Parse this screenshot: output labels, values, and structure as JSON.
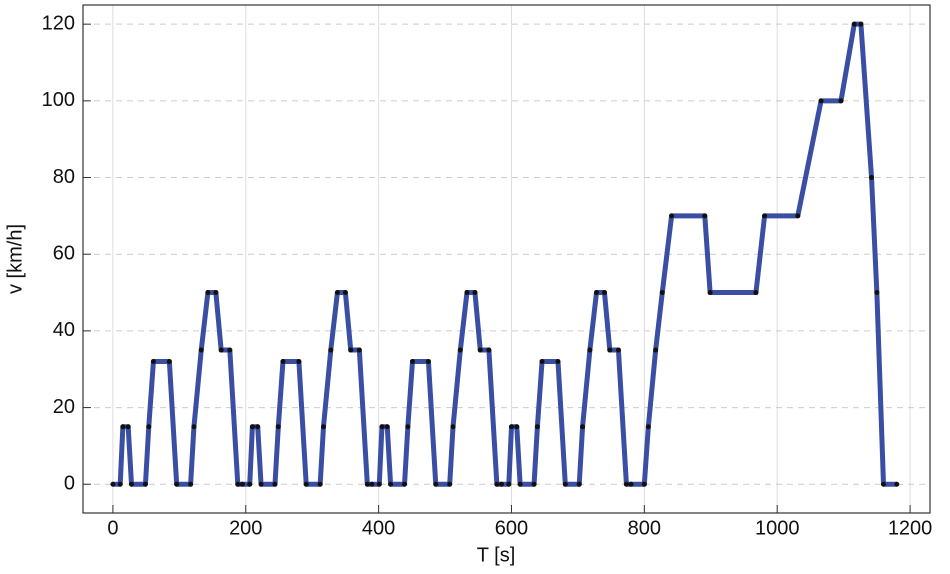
{
  "chart_data": {
    "type": "line",
    "xlabel": "T [s]",
    "ylabel": "v [km/h]",
    "x": [
      0,
      11,
      15,
      23,
      28,
      49,
      54,
      61,
      85,
      96,
      117,
      122,
      133,
      143,
      155,
      163,
      176,
      188,
      195,
      206,
      210,
      218,
      223,
      244,
      249,
      256,
      280,
      291,
      312,
      317,
      328,
      338,
      350,
      358,
      371,
      383,
      390,
      401,
      405,
      413,
      418,
      439,
      444,
      451,
      475,
      486,
      507,
      512,
      523,
      533,
      545,
      553,
      566,
      578,
      585,
      596,
      600,
      608,
      613,
      634,
      639,
      646,
      670,
      681,
      702,
      707,
      718,
      728,
      740,
      748,
      761,
      773,
      780,
      800,
      806,
      817,
      827,
      841,
      891,
      899,
      968,
      981,
      1031,
      1066,
      1096,
      1116,
      1126,
      1142,
      1150,
      1160,
      1180
    ],
    "values": [
      0,
      0,
      15,
      15,
      0,
      0,
      15,
      32,
      32,
      0,
      0,
      15,
      35,
      50,
      50,
      35,
      35,
      0,
      0,
      0,
      15,
      15,
      0,
      0,
      15,
      32,
      32,
      0,
      0,
      15,
      35,
      50,
      50,
      35,
      35,
      0,
      0,
      0,
      15,
      15,
      0,
      0,
      15,
      32,
      32,
      0,
      0,
      15,
      35,
      50,
      50,
      35,
      35,
      0,
      0,
      0,
      15,
      15,
      0,
      0,
      15,
      32,
      32,
      0,
      0,
      15,
      35,
      50,
      50,
      35,
      35,
      0,
      0,
      0,
      15,
      35,
      50,
      70,
      70,
      50,
      50,
      70,
      70,
      100,
      100,
      120,
      120,
      80,
      50,
      0,
      0
    ],
    "color": "#3a4ea3",
    "xlim": [
      -45,
      1230
    ],
    "ylim": [
      -7.5,
      125
    ],
    "xticks": [
      0,
      200,
      400,
      600,
      800,
      1000,
      1200
    ],
    "yticks": [
      0,
      20,
      40,
      60,
      80,
      100,
      120
    ],
    "grid": true
  }
}
